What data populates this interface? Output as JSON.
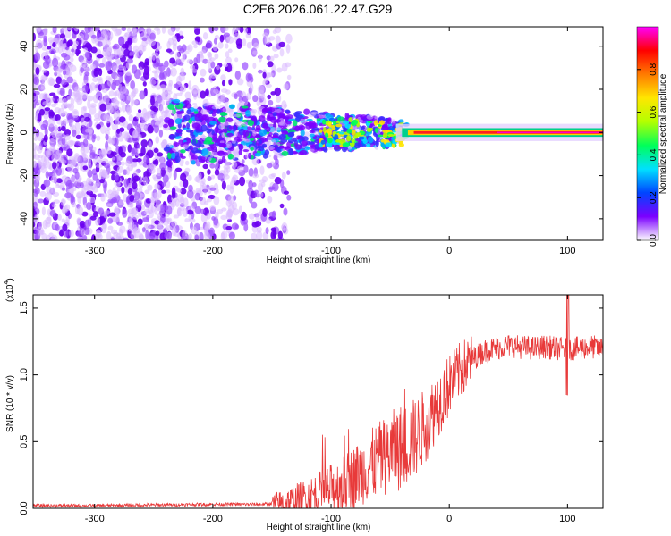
{
  "chart_data": [
    {
      "type": "heatmap",
      "title": "C2E6.2026.061.22.47.G29",
      "xlabel": "Height of straight line (km)",
      "ylabel": "Frequency (Hz)",
      "xlim": [
        -352,
        130
      ],
      "ylim": [
        -50,
        49
      ],
      "xticks": [
        -300,
        -200,
        -100,
        0,
        100
      ],
      "yticks": [
        -40,
        -20,
        0,
        20,
        40
      ],
      "colorbar": {
        "label": "Normalized spectral amplitude",
        "range": [
          0,
          1
        ],
        "ticks": [
          "0.0",
          "0.2",
          "0.4",
          "0.6",
          "0.8"
        ],
        "tick_values": [
          0,
          0.2,
          0.4,
          0.6,
          0.8
        ],
        "colors": [
          "#ffffff",
          "#7b00ff",
          "#0044ff",
          "#00e0ff",
          "#00ff5a",
          "#b4ff00",
          "#ffe600",
          "#ff7a00",
          "#ff0000",
          "#ff00ff"
        ]
      },
      "description_points": {
        "noise_region_x": [
          -352,
          -140
        ],
        "central_line_hz": 0,
        "strong_line_x": [
          -40,
          130
        ]
      }
    },
    {
      "type": "line",
      "xlabel": "Height of straight line (km)",
      "ylabel": "SNR (10 * v/v)",
      "scale_label": "(x10",
      "scale_exponent": "4",
      "xlim": [
        -352,
        130
      ],
      "ylim": [
        0,
        1.6
      ],
      "xticks": [
        -300,
        -200,
        -100,
        0,
        100
      ],
      "yticks": [
        0.0,
        0.5,
        1.0,
        1.5
      ],
      "ytick_labels": [
        "0.0",
        "0.5",
        "1.0",
        "1.5"
      ],
      "series": [
        {
          "name": "SNR",
          "color": "#e83a3a",
          "x": [
            -352,
            -300,
            -250,
            -200,
            -160,
            -140,
            -120,
            -100,
            -90,
            -80,
            -70,
            -60,
            -50,
            -40,
            -30,
            -20,
            -10,
            0,
            10,
            20,
            30,
            40,
            50,
            60,
            70,
            80,
            90,
            100,
            110,
            120,
            130
          ],
          "values": [
            0.02,
            0.02,
            0.025,
            0.03,
            0.03,
            0.04,
            0.08,
            0.14,
            0.18,
            0.24,
            0.3,
            0.36,
            0.42,
            0.46,
            0.52,
            0.62,
            0.78,
            0.92,
            1.04,
            1.12,
            1.18,
            1.2,
            1.22,
            1.21,
            1.2,
            1.21,
            1.2,
            1.19,
            1.2,
            1.21,
            1.2
          ]
        }
      ]
    }
  ]
}
